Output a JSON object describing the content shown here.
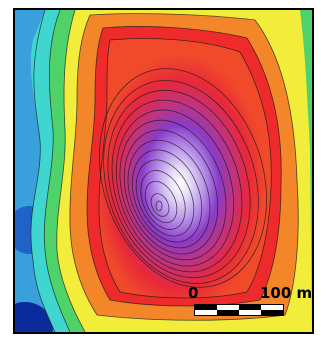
{
  "map": {
    "colors": {
      "low_deep": "#0b2a9c",
      "low": "#3fa0d8",
      "cyan": "#3fd6d0",
      "green": "#4fd26a",
      "yellow": "#f2ec3a",
      "orange": "#f48a2a",
      "red": "#ee2a2a",
      "magenta": "#d0307e",
      "purple": "#8a3bc8",
      "violet": "#a67ae0",
      "summit": "#ffffff",
      "contour": "#000000"
    }
  },
  "scale_bar": {
    "start_label": "0",
    "end_label": "100 m"
  }
}
